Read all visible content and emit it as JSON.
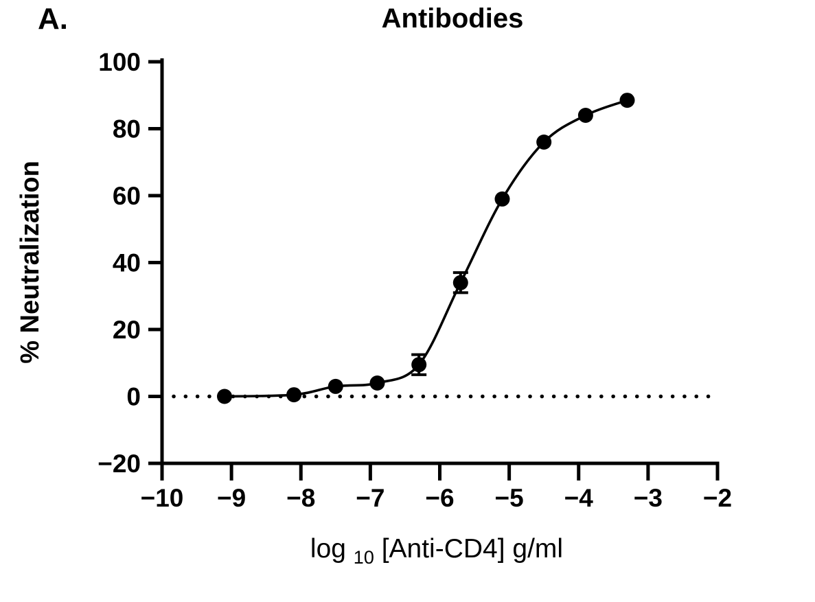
{
  "chart_data": {
    "type": "scatter",
    "panel_label": "A.",
    "title": "Antibodies",
    "ylabel": "% Neutralization",
    "xlabel": "log10[Anti-CD4] g/ml",
    "xlabel_parts": {
      "prefix": "log",
      "subscript": "10",
      "suffix": "[Anti-CD4] g/ml"
    },
    "xlim": [
      -10,
      -2
    ],
    "ylim": [
      -20,
      100
    ],
    "xtick_values": [
      -10,
      -9,
      -8,
      -7,
      -6,
      -5,
      -4,
      -3,
      -2
    ],
    "xtick_labels": [
      "−10",
      "−9",
      "−8",
      "−7",
      "−6",
      "−5",
      "−4",
      "−3",
      "−2"
    ],
    "ytick_values": [
      -20,
      0,
      20,
      40,
      60,
      80,
      100
    ],
    "ytick_labels": [
      "−20",
      "0",
      "20",
      "40",
      "60",
      "80",
      "100"
    ],
    "grid": false,
    "legend": "none",
    "baseline": {
      "y": 0,
      "style": "dotted"
    },
    "series": [
      {
        "name": "Anti-CD4",
        "marker": "circle",
        "color": "#000000",
        "x": [
          -9.1,
          -8.1,
          -7.5,
          -6.9,
          -6.3,
          -5.7,
          -5.1,
          -4.5,
          -3.9,
          -3.3
        ],
        "y": [
          0,
          0.5,
          3,
          4,
          9.5,
          34,
          59,
          76,
          84,
          88.5
        ],
        "err": [
          0,
          0,
          0,
          0,
          3,
          3,
          0,
          0,
          0,
          0
        ],
        "fit_line": true
      }
    ]
  }
}
